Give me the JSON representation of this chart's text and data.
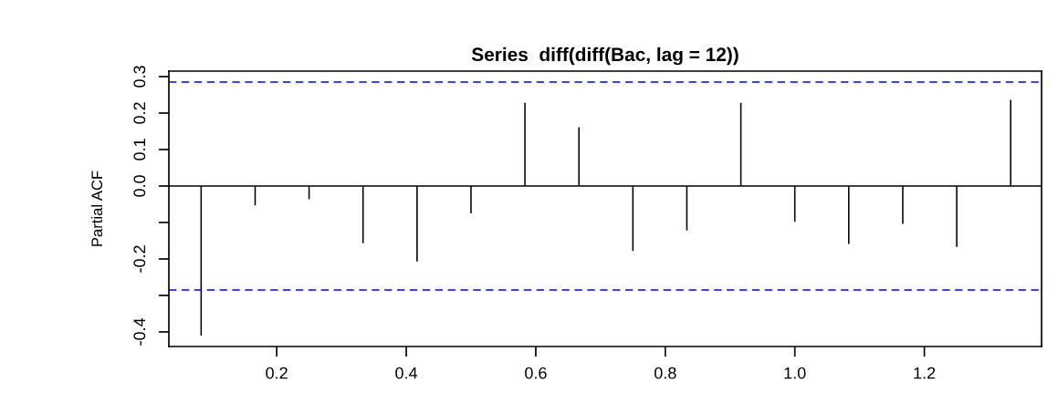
{
  "chart_data": {
    "type": "bar",
    "title": "Series  diff(diff(Bac, lag = 12))",
    "ylabel": "Partial ACF",
    "x": [
      0.0833,
      0.1667,
      0.25,
      0.3333,
      0.4167,
      0.5,
      0.5833,
      0.6667,
      0.75,
      0.8333,
      0.9167,
      1.0,
      1.0833,
      1.1667,
      1.25,
      1.3333
    ],
    "values": [
      -0.41,
      -0.053,
      -0.036,
      -0.157,
      -0.207,
      -0.075,
      0.228,
      0.161,
      -0.178,
      -0.122,
      0.228,
      -0.098,
      -0.159,
      -0.104,
      -0.167,
      0.236
    ],
    "color": "#000000",
    "xlim": [
      0.0335,
      1.381
    ],
    "xticks": [
      {
        "value": 0.2,
        "label": "0.2"
      },
      {
        "value": 0.4,
        "label": "0.4"
      },
      {
        "value": 0.6,
        "label": "0.6"
      },
      {
        "value": 0.8,
        "label": "0.8"
      },
      {
        "value": 1.0,
        "label": "1.0"
      },
      {
        "value": 1.2,
        "label": "1.2"
      }
    ],
    "ylim": [
      -0.44,
      0.315
    ],
    "yticks": [
      {
        "value": -0.4,
        "label": "-0.4"
      },
      {
        "value": -0.3,
        "label": null
      },
      {
        "value": -0.2,
        "label": "-0.2"
      },
      {
        "value": -0.1,
        "label": null
      },
      {
        "value": 0.0,
        "label": "0.0"
      },
      {
        "value": 0.1,
        "label": "0.1"
      },
      {
        "value": 0.2,
        "label": "0.2"
      },
      {
        "value": 0.3,
        "label": "0.3"
      }
    ],
    "ref_lines": [
      {
        "axis": "y",
        "value": 0.285,
        "color": "#0000ff",
        "line_style": "dashed"
      },
      {
        "axis": "y",
        "value": -0.285,
        "color": "#0000ff",
        "line_style": "dashed"
      },
      {
        "axis": "y",
        "value": 0,
        "color": "#000000",
        "line_style": "solid"
      }
    ],
    "grid": false
  }
}
